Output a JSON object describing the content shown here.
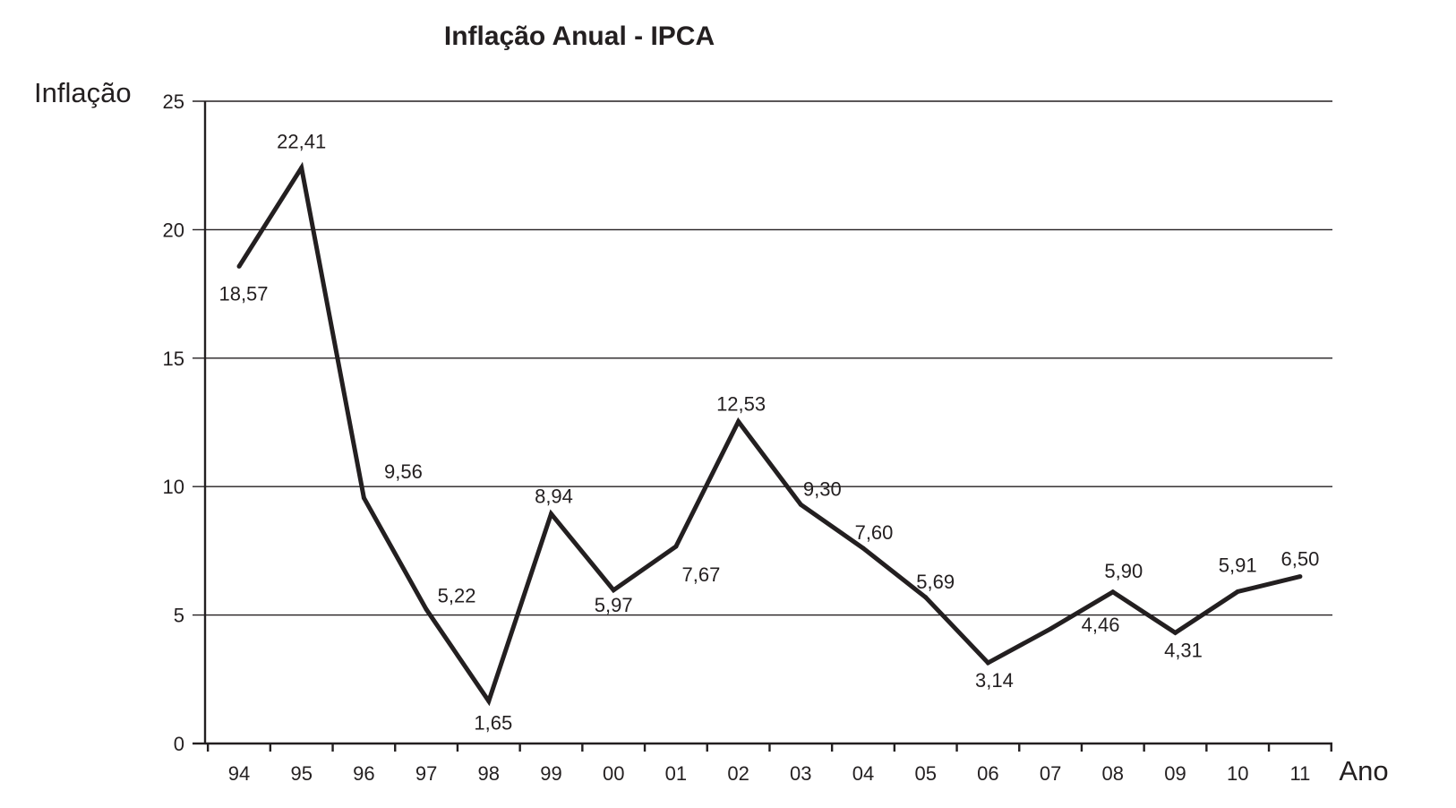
{
  "chart_data": {
    "type": "line",
    "title": "Inflação Anual - IPCA",
    "ylabel": "Inflação",
    "xlabel": "Ano",
    "ylim": [
      0,
      25
    ],
    "yticks": [
      "0",
      "5",
      "10",
      "15",
      "20",
      "25"
    ],
    "ytick_values": [
      0,
      5,
      10,
      15,
      20,
      25
    ],
    "grid": true,
    "legend": "none",
    "categories": [
      "94",
      "95",
      "96",
      "97",
      "98",
      "99",
      "00",
      "01",
      "02",
      "03",
      "04",
      "05",
      "06",
      "07",
      "08",
      "09",
      "10",
      "11"
    ],
    "values": [
      18.57,
      22.41,
      9.56,
      5.22,
      1.65,
      8.94,
      5.97,
      7.67,
      12.53,
      9.3,
      7.6,
      5.69,
      3.14,
      4.46,
      5.9,
      4.31,
      5.91,
      6.5
    ],
    "value_labels": [
      "18,57",
      "22,41",
      "9,56",
      "5,22",
      "1,65",
      "8,94",
      "5,97",
      "7,67",
      "12,53",
      "9,30",
      "7,60",
      "5,69",
      "3,14",
      "4,46",
      "5,90",
      "4,31",
      "5,91",
      "6,50"
    ],
    "colors": {
      "line": "#231f20",
      "grid": "#231f20",
      "text": "#231f20"
    }
  }
}
